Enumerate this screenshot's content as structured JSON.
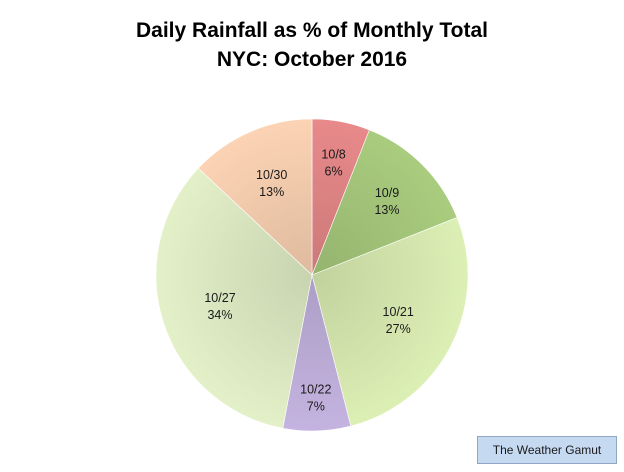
{
  "chart_data": {
    "type": "pie",
    "title": "Daily Rainfall as % of Monthly Total",
    "subtitle": "NYC: October 2016",
    "slices": [
      {
        "label": "10/8",
        "value": 6,
        "value_label": "6%",
        "color": "#e8898a"
      },
      {
        "label": "10/9",
        "value": 13,
        "value_label": "13%",
        "color": "#a9cc7e"
      },
      {
        "label": "10/21",
        "value": 27,
        "value_label": "27%",
        "color": "#dcefb4"
      },
      {
        "label": "10/22",
        "value": 7,
        "value_label": "7%",
        "color": "#c4b3e0"
      },
      {
        "label": "10/27",
        "value": 34,
        "value_label": "34%",
        "color": "#e3f0c8"
      },
      {
        "label": "10/30",
        "value": 13,
        "value_label": "13%",
        "color": "#fcd3b4"
      }
    ],
    "start_angle": "12 o'clock",
    "direction": "clockwise"
  },
  "credit": "The Weather Gamut"
}
